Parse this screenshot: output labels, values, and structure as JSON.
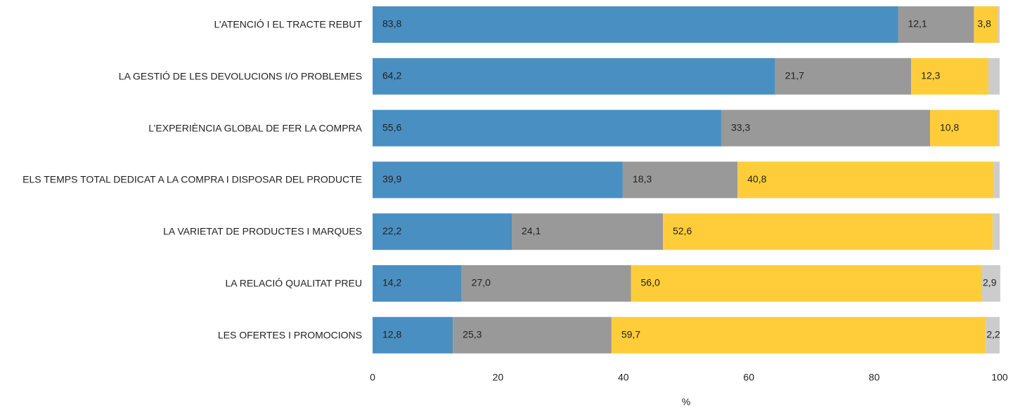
{
  "chart_data": {
    "type": "stacked-bar-horizontal",
    "categories": [
      "L’ATENCIÓ I EL TRACTE REBUT",
      "LA GESTIÓ DE LES DEVOLUCIONS I/O PROBLEMES",
      "L’EXPERIÈNCIA GLOBAL DE FER LA COMPRA",
      "ELS TEMPS TOTAL DEDICAT A LA COMPRA I DISPOSAR DEL PRODUCTE",
      "LA VARIETAT DE PRODUCTES I MARQUES",
      "LA RELACIÓ QUALITAT PREU",
      "LES OFERTES I PROMOCIONS"
    ],
    "series": [
      {
        "color": "#4a8fc2",
        "label_color": "#ffffff",
        "values": [
          83.8,
          64.2,
          55.6,
          39.9,
          22.2,
          14.2,
          12.8
        ],
        "value_labels": [
          "83,8",
          "64,2",
          "55,6",
          "39,9",
          "22,2",
          "14,2",
          "12,8"
        ]
      },
      {
        "color": "#999999",
        "label_color": "#ffffff",
        "values": [
          12.1,
          21.7,
          33.3,
          18.3,
          24.1,
          27.0,
          25.3
        ],
        "value_labels": [
          "12,1",
          "21,7",
          "33,3",
          "18,3",
          "24,1",
          "27,0",
          "25,3"
        ]
      },
      {
        "color": "#ffcd3a",
        "label_color": "#000000",
        "values": [
          3.8,
          12.3,
          10.8,
          40.8,
          52.6,
          56.0,
          59.7
        ],
        "value_labels": [
          "3,8",
          "12,3",
          "10,8",
          "40,8",
          "52,6",
          "56,0",
          "59,7"
        ]
      },
      {
        "color": "#cccccc",
        "label_color": "#000000",
        "values": [
          0.3,
          1.8,
          0.3,
          1.0,
          1.1,
          2.9,
          2.2
        ],
        "value_labels": [
          null,
          null,
          null,
          null,
          null,
          "2,9",
          "2,2"
        ]
      }
    ],
    "xlabel": "%",
    "xlim": [
      0,
      100
    ],
    "xticks": [
      0,
      20,
      40,
      60,
      80,
      100
    ],
    "grid": false
  }
}
